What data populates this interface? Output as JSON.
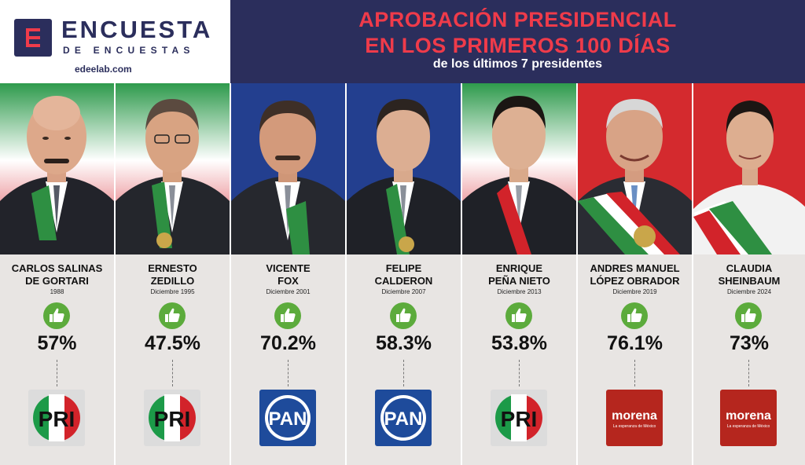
{
  "brand": {
    "name": "ENCUESTA",
    "subname": "DE ENCUESTAS",
    "url": "edeelab.com"
  },
  "header": {
    "title_line1": "APROBACIÓN PRESIDENCIAL",
    "title_line2": "EN LOS PRIMEROS 100 DÍAS",
    "subtitle": "de los últimos 7 presidentes"
  },
  "presidents": [
    {
      "name_line1": "CARLOS SALINAS",
      "name_line2": "DE GORTARI",
      "date": "1988",
      "approval": "57%",
      "party": "PRI"
    },
    {
      "name_line1": "ERNESTO",
      "name_line2": "ZEDILLO",
      "date": "Diciembre 1995",
      "approval": "47.5%",
      "party": "PRI"
    },
    {
      "name_line1": "VICENTE",
      "name_line2": "FOX",
      "date": "Diciembre 2001",
      "approval": "70.2%",
      "party": "PAN"
    },
    {
      "name_line1": "FELIPE",
      "name_line2": "CALDERON",
      "date": "Diciembre 2007",
      "approval": "58.3%",
      "party": "PAN"
    },
    {
      "name_line1": "ENRIQUE",
      "name_line2": "PEÑA NIETO",
      "date": "Diciembre 2013",
      "approval": "53.8%",
      "party": "PRI"
    },
    {
      "name_line1": "ANDRES MANUEL",
      "name_line2": "LÓPEZ OBRADOR",
      "date": "Diciembre 2019",
      "approval": "76.1%",
      "party": "morena"
    },
    {
      "name_line1": "CLAUDIA",
      "name_line2": "SHEINBAUM",
      "date": "Diciembre 2024",
      "approval": "73%",
      "party": "morena"
    }
  ],
  "party_logos": {
    "pri_text": "PRI",
    "pan_text": "PAN",
    "morena_text": "morena",
    "morena_tagline": "La esperanza de México"
  },
  "colors": {
    "navy": "#2b2e5c",
    "title_red": "#ef3b4a",
    "thumb_green": "#5cab3c",
    "card_bg": "#e8e5e3",
    "pri_green": "#1c9a48",
    "pri_red": "#d2232a",
    "pan_blue": "#1e4b9b",
    "morena_red": "#b5261e"
  }
}
